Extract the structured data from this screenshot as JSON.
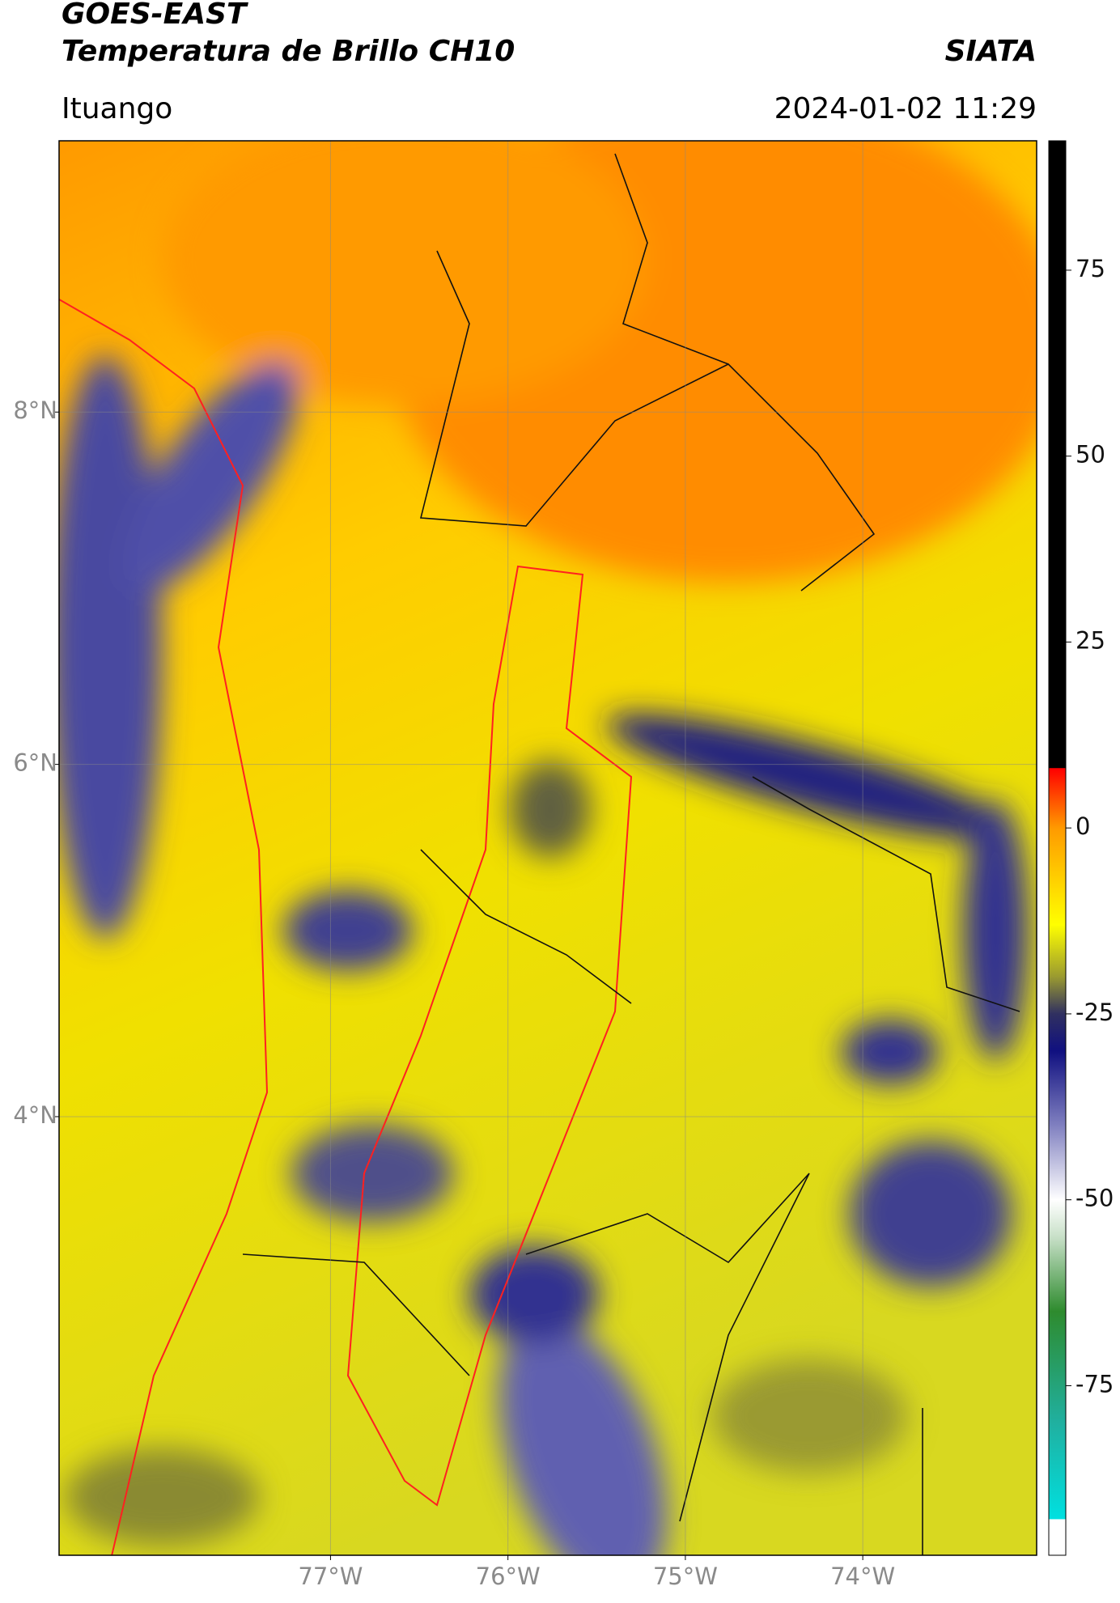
{
  "chart_data": {
    "type": "map",
    "title": "GOES-EAST",
    "subtitle": "Temperatura de Brillo CH10",
    "source": "SIATA",
    "region": "Ituango",
    "timestamp": "2024-01-02 11:29",
    "xlim": [
      -78.53,
      -73.02
    ],
    "ylim": [
      1.51,
      9.54
    ],
    "xticks": [
      {
        "value": -77,
        "label": "77°W"
      },
      {
        "value": -76,
        "label": "76°W"
      },
      {
        "value": -75,
        "label": "75°W"
      },
      {
        "value": -74,
        "label": "74°W"
      }
    ],
    "yticks": [
      {
        "value": 4,
        "label": "4°N"
      },
      {
        "value": 6,
        "label": "6°N"
      },
      {
        "value": 8,
        "label": "8°N"
      }
    ],
    "grid": true,
    "clim": [
      -97.8,
      92.4
    ],
    "cticks": [
      -75,
      -50,
      -25,
      0,
      25,
      50,
      75
    ],
    "colormap": [
      {
        "value": -97.8,
        "color": "#ffffff"
      },
      {
        "value": -93,
        "color": "#ffffff"
      },
      {
        "value": -92.9,
        "color": "#00e0e0"
      },
      {
        "value": -80,
        "color": "#20b0a0"
      },
      {
        "value": -65,
        "color": "#2e8b2e"
      },
      {
        "value": -55,
        "color": "#c8e0c8"
      },
      {
        "value": -50,
        "color": "#ffffff"
      },
      {
        "value": -40,
        "color": "#8080c0"
      },
      {
        "value": -30,
        "color": "#101080"
      },
      {
        "value": -25,
        "color": "#303060"
      },
      {
        "value": -20,
        "color": "#9a9a30"
      },
      {
        "value": -13,
        "color": "#ffff00"
      },
      {
        "value": 0,
        "color": "#ff9a00"
      },
      {
        "value": 8,
        "color": "#ff0000"
      },
      {
        "value": 8.1,
        "color": "#000000"
      },
      {
        "value": 92.4,
        "color": "#000000"
      }
    ]
  }
}
